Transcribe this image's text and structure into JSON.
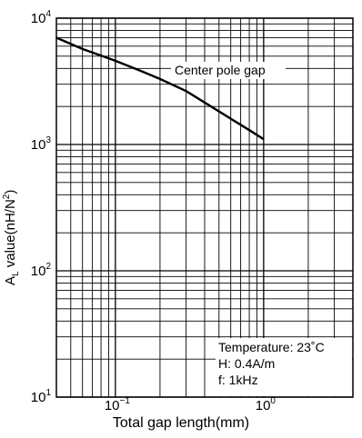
{
  "chart_data": {
    "type": "line",
    "xscale": "log",
    "yscale": "log",
    "xlim": [
      0.04,
      4
    ],
    "ylim": [
      10,
      10000
    ],
    "grid": true,
    "x_ticks": [
      {
        "value": 0.1,
        "base": "10",
        "exp": "−1"
      },
      {
        "value": 1,
        "base": "10",
        "exp": "0"
      }
    ],
    "y_ticks": [
      {
        "value": 10,
        "base": "10",
        "exp": "1"
      },
      {
        "value": 100,
        "base": "10",
        "exp": "2"
      },
      {
        "value": 1000,
        "base": "10",
        "exp": "3"
      },
      {
        "value": 10000,
        "base": "10",
        "exp": "4"
      }
    ],
    "series": [
      {
        "name": "Center pole gap",
        "x": [
          0.04,
          0.06,
          0.1,
          0.15,
          0.2,
          0.3,
          0.4,
          0.6,
          0.8,
          1.0
        ],
        "y": [
          7000,
          5700,
          4600,
          3800,
          3300,
          2650,
          2150,
          1600,
          1300,
          1100
        ]
      }
    ],
    "xlabel": "Total gap length(mm)",
    "ylabel_main": "A",
    "ylabel_sub": "L",
    "ylabel_rest": " value(nH/N",
    "ylabel_sup": "2",
    "ylabel_end": ")",
    "annotations": [
      "Temperature: 23˚C",
      "H: 0.4A/m",
      "f: 1kHz"
    ],
    "line_color": "#000000"
  }
}
